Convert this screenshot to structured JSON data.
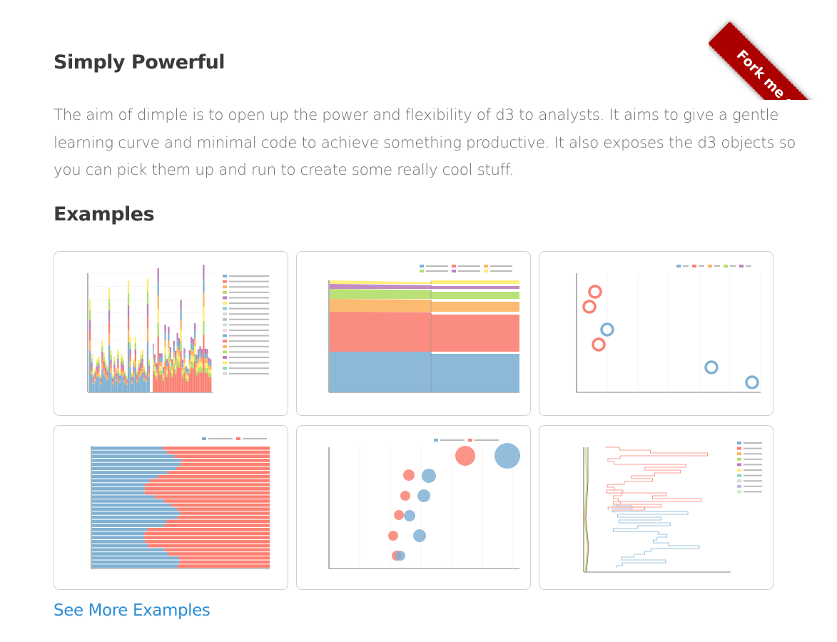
{
  "ribbon": {
    "label": "Fork me on GitHub"
  },
  "sections": {
    "intro_title": "Simply Powerful",
    "intro_text": "The aim of dimple is to open up the power and flexibility of d3 to analysts. It aims to give a gentle learning curve and minimal code to achieve something productive. It also exposes the d3 objects so you can pick them up and run to create some really cool stuff.",
    "examples_title": "Examples",
    "see_more": "See More Examples"
  },
  "palette": [
    "#80b1d3",
    "#fb8072",
    "#fdb462",
    "#b3de69",
    "#bc80bd",
    "#ffed6f",
    "#8dd3c7",
    "#d9d9d9",
    "#bebada",
    "#ccebc5",
    "#fccde5"
  ],
  "thumbnails": [
    {
      "name": "stacked-bar-example",
      "kind": "stacked-bars"
    },
    {
      "name": "area-example",
      "kind": "stacked-area"
    },
    {
      "name": "ring-example",
      "kind": "rings"
    },
    {
      "name": "horizontal-bar-example",
      "kind": "horizontal-bars"
    },
    {
      "name": "bubble-example",
      "kind": "bubbles"
    },
    {
      "name": "step-line-example",
      "kind": "step-lines"
    }
  ]
}
